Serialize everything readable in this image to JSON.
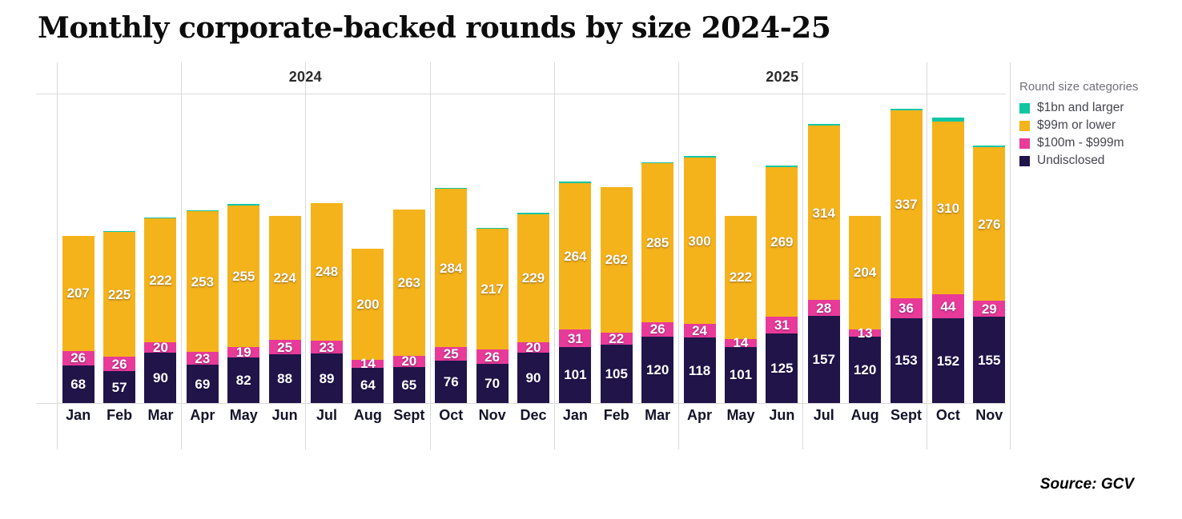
{
  "title": "Monthly corporate-backed rounds by size 2024-25",
  "source_label": "Source: GCV",
  "legend": {
    "title": "Round size categories",
    "items": [
      {
        "label": "$1bn and larger",
        "key": "bn1_est",
        "color": "#10C6A3"
      },
      {
        "label": "$99m or lower",
        "key": "m99_lower",
        "color": "#F5B31B"
      },
      {
        "label": "$100m - $999m",
        "key": "m100_999",
        "color": "#E83A99"
      },
      {
        "label": "Undisclosed",
        "key": "undisclosed",
        "color": "#211449"
      }
    ]
  },
  "chart_data": {
    "type": "bar",
    "stacked": true,
    "title": "Monthly corporate-backed rounds by size 2024-25",
    "legend_position": "right",
    "grid": "horizontal-top-and-baseline, vertical quarter separators",
    "segment_order_bottom_to_top": [
      "undisclosed",
      "m100_999",
      "m99_lower",
      "bn1_est"
    ],
    "colors": {
      "undisclosed": "#211449",
      "m100_999": "#E83A99",
      "m99_lower": "#F5B31B",
      "bn1_est": "#10C6A3"
    },
    "labeled_segments": [
      "undisclosed",
      "m100_999",
      "m99_lower"
    ],
    "note": "bn1_est ($1bn and larger) caps are unlabeled in the image; values estimated from pixel heights",
    "groups": [
      {
        "year": "2024",
        "months": [
          {
            "label": "Jan",
            "undisclosed": 68,
            "m100_999": 26,
            "m99_lower": 207,
            "bn1_est": 0
          },
          {
            "label": "Feb",
            "undisclosed": 57,
            "m100_999": 26,
            "m99_lower": 225,
            "bn1_est": 2
          },
          {
            "label": "Mar",
            "undisclosed": 90,
            "m100_999": 20,
            "m99_lower": 222,
            "bn1_est": 2
          },
          {
            "label": "Apr",
            "undisclosed": 69,
            "m100_999": 23,
            "m99_lower": 253,
            "bn1_est": 2
          },
          {
            "label": "May",
            "undisclosed": 82,
            "m100_999": 19,
            "m99_lower": 255,
            "bn1_est": 3
          },
          {
            "label": "Jun",
            "undisclosed": 88,
            "m100_999": 25,
            "m99_lower": 224,
            "bn1_est": 0
          },
          {
            "label": "Jul",
            "undisclosed": 89,
            "m100_999": 23,
            "m99_lower": 248,
            "bn1_est": 0
          },
          {
            "label": "Aug",
            "undisclosed": 64,
            "m100_999": 14,
            "m99_lower": 200,
            "bn1_est": 0
          },
          {
            "label": "Sept",
            "undisclosed": 65,
            "m100_999": 20,
            "m99_lower": 263,
            "bn1_est": 0
          },
          {
            "label": "Oct",
            "undisclosed": 76,
            "m100_999": 25,
            "m99_lower": 284,
            "bn1_est": 2
          },
          {
            "label": "Nov",
            "undisclosed": 70,
            "m100_999": 26,
            "m99_lower": 217,
            "bn1_est": 2
          },
          {
            "label": "Dec",
            "undisclosed": 90,
            "m100_999": 20,
            "m99_lower": 229,
            "bn1_est": 3
          }
        ]
      },
      {
        "year": "2025",
        "months": [
          {
            "label": "Jan",
            "undisclosed": 101,
            "m100_999": 31,
            "m99_lower": 264,
            "bn1_est": 2
          },
          {
            "label": "Feb",
            "undisclosed": 105,
            "m100_999": 22,
            "m99_lower": 262,
            "bn1_est": 0
          },
          {
            "label": "Mar",
            "undisclosed": 120,
            "m100_999": 26,
            "m99_lower": 285,
            "bn1_est": 2
          },
          {
            "label": "Apr",
            "undisclosed": 118,
            "m100_999": 24,
            "m99_lower": 300,
            "bn1_est": 3
          },
          {
            "label": "May",
            "undisclosed": 101,
            "m100_999": 14,
            "m99_lower": 222,
            "bn1_est": 0
          },
          {
            "label": "Jun",
            "undisclosed": 125,
            "m100_999": 31,
            "m99_lower": 269,
            "bn1_est": 3
          },
          {
            "label": "Jul",
            "undisclosed": 157,
            "m100_999": 28,
            "m99_lower": 314,
            "bn1_est": 3
          },
          {
            "label": "Aug",
            "undisclosed": 120,
            "m100_999": 13,
            "m99_lower": 204,
            "bn1_est": 0
          },
          {
            "label": "Sept",
            "undisclosed": 153,
            "m100_999": 36,
            "m99_lower": 337,
            "bn1_est": 3
          },
          {
            "label": "Oct",
            "undisclosed": 152,
            "m100_999": 44,
            "m99_lower": 310,
            "bn1_est": 8
          },
          {
            "label": "Nov",
            "undisclosed": 155,
            "m100_999": 29,
            "m99_lower": 276,
            "bn1_est": 3
          }
        ]
      }
    ]
  }
}
